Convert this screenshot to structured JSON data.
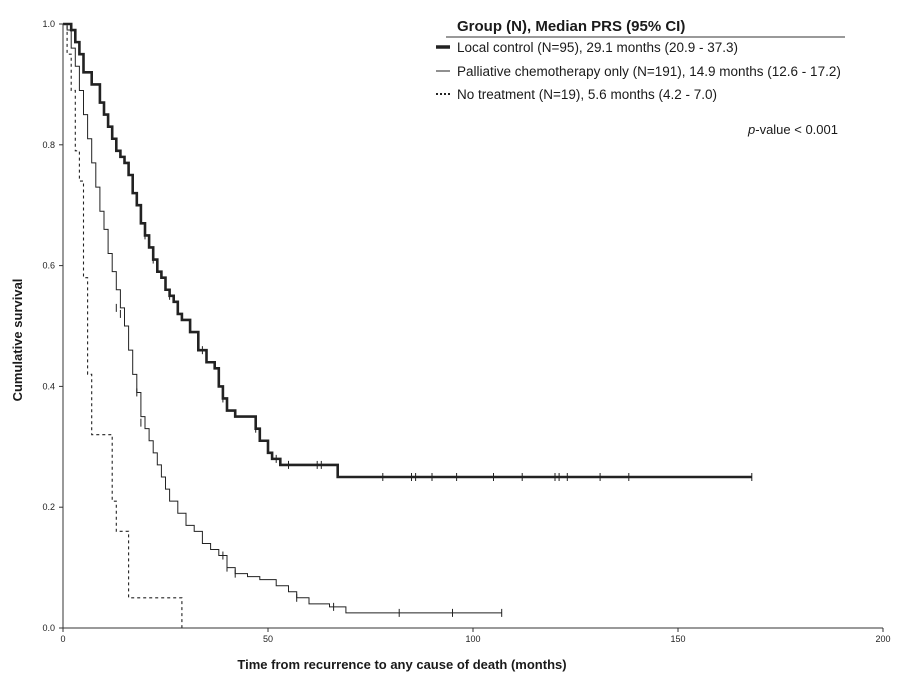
{
  "chart_data": {
    "type": "line",
    "subtype": "kaplan-meier",
    "xlabel": "Time from recurrence to any cause of death (months)",
    "ylabel": "Cumulative survival",
    "xlim": [
      0,
      200
    ],
    "ylim": [
      0,
      1.0
    ],
    "x_ticks": [
      "0",
      "50",
      "100",
      "150",
      "200"
    ],
    "y_ticks": [
      "0.0",
      "0.2",
      "0.4",
      "0.6",
      "0.8",
      "1.0"
    ],
    "grid": false,
    "legend": {
      "title": "Group (N), Median PRS (95% CI)",
      "position": "top-right",
      "entries": [
        "Local control (N=95), 29.1 months  (20.9 - 37.3)",
        "Palliative chemotherapy only (N=191), 14.9 months (12.6 - 17.2)",
        "No treatment (N=19), 5.6 months (4.2 - 7.0)"
      ]
    },
    "annotation": {
      "italic": "p",
      "text": "-value < 0.001"
    },
    "series": [
      {
        "name": "Local control (N=95), 29.1 months  (20.9 - 37.3)",
        "style": "thick",
        "color": "#222222",
        "x": [
          0,
          2,
          3,
          4,
          5,
          7,
          9,
          10,
          11,
          12,
          13,
          14,
          15,
          16,
          17,
          18,
          19,
          20,
          21,
          22,
          23,
          24,
          25,
          26,
          27,
          28,
          29,
          31,
          33,
          35,
          37,
          38,
          39,
          40,
          42,
          44,
          47,
          48,
          50,
          51,
          53,
          58,
          65,
          67,
          168
        ],
        "y": [
          1.0,
          0.99,
          0.97,
          0.95,
          0.92,
          0.9,
          0.87,
          0.85,
          0.83,
          0.81,
          0.79,
          0.78,
          0.77,
          0.75,
          0.72,
          0.7,
          0.67,
          0.65,
          0.63,
          0.61,
          0.59,
          0.58,
          0.56,
          0.55,
          0.54,
          0.52,
          0.51,
          0.49,
          0.46,
          0.44,
          0.43,
          0.4,
          0.38,
          0.36,
          0.35,
          0.35,
          0.33,
          0.31,
          0.29,
          0.28,
          0.27,
          0.27,
          0.27,
          0.25,
          0.25
        ],
        "censored": [
          [
            20,
            0.65
          ],
          [
            22,
            0.61
          ],
          [
            26,
            0.55
          ],
          [
            34,
            0.46
          ],
          [
            39,
            0.38
          ],
          [
            40,
            0.37
          ],
          [
            47,
            0.33
          ],
          [
            50,
            0.3
          ],
          [
            52,
            0.28
          ],
          [
            55,
            0.27
          ],
          [
            62,
            0.27
          ],
          [
            63,
            0.27
          ],
          [
            78,
            0.25
          ],
          [
            85,
            0.25
          ],
          [
            86,
            0.25
          ],
          [
            90,
            0.25
          ],
          [
            96,
            0.25
          ],
          [
            105,
            0.25
          ],
          [
            112,
            0.25
          ],
          [
            120,
            0.25
          ],
          [
            121,
            0.25
          ],
          [
            123,
            0.25
          ],
          [
            131,
            0.25
          ],
          [
            138,
            0.25
          ],
          [
            168,
            0.25
          ]
        ]
      },
      {
        "name": "Palliative chemotherapy only (N=191), 14.9 months (12.6 - 17.2)",
        "style": "thin",
        "color": "#222222",
        "x": [
          0,
          1,
          2,
          3,
          4,
          5,
          6,
          7,
          8,
          9,
          10,
          11,
          12,
          13,
          14,
          15,
          16,
          17,
          18,
          19,
          20,
          21,
          22,
          23,
          24,
          25,
          26,
          28,
          30,
          32,
          34,
          36,
          38,
          40,
          42,
          45,
          48,
          52,
          55,
          57,
          60,
          65,
          69,
          107
        ],
        "y": [
          1.0,
          0.99,
          0.96,
          0.93,
          0.89,
          0.85,
          0.81,
          0.77,
          0.73,
          0.69,
          0.66,
          0.62,
          0.59,
          0.56,
          0.53,
          0.5,
          0.46,
          0.42,
          0.39,
          0.35,
          0.33,
          0.31,
          0.29,
          0.27,
          0.25,
          0.23,
          0.21,
          0.19,
          0.17,
          0.16,
          0.14,
          0.13,
          0.12,
          0.1,
          0.09,
          0.085,
          0.08,
          0.07,
          0.06,
          0.05,
          0.04,
          0.035,
          0.025,
          0.025
        ],
        "censored": [
          [
            13,
            0.53
          ],
          [
            14,
            0.52
          ],
          [
            18,
            0.39
          ],
          [
            19,
            0.34
          ],
          [
            39,
            0.12
          ],
          [
            40,
            0.1
          ],
          [
            42,
            0.09
          ],
          [
            57,
            0.05
          ],
          [
            66,
            0.035
          ],
          [
            82,
            0.025
          ],
          [
            95,
            0.025
          ],
          [
            107,
            0.025
          ]
        ]
      },
      {
        "name": "No treatment (N=19), 5.6 months (4.2 - 7.0)",
        "style": "dashed",
        "color": "#222222",
        "x": [
          0,
          1,
          2,
          3,
          4,
          5,
          6,
          7,
          12,
          13,
          14,
          16,
          29
        ],
        "y": [
          1.0,
          0.95,
          0.89,
          0.79,
          0.74,
          0.58,
          0.42,
          0.32,
          0.21,
          0.16,
          0.16,
          0.05,
          0.0
        ]
      }
    ]
  }
}
